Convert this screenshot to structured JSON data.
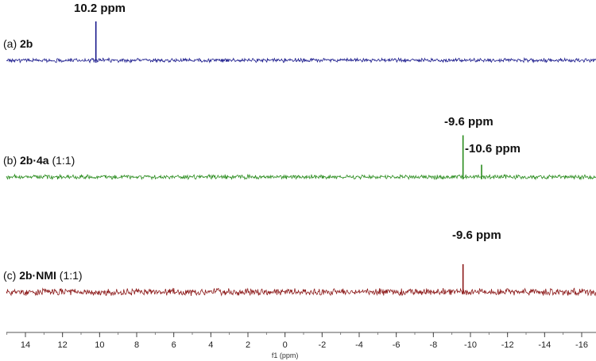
{
  "chart_data": {
    "type": "line",
    "xlabel": "f1 (ppm)",
    "xlim": [
      15,
      -16.5
    ],
    "x_reversed": true,
    "x_ticks": [
      14,
      12,
      10,
      8,
      6,
      4,
      2,
      0,
      -2,
      -4,
      -6,
      -8,
      -10,
      -12,
      -14,
      -16
    ],
    "x_tick_labels": [
      "14",
      "12",
      "10",
      "8",
      "6",
      "4",
      "2",
      "0",
      "-2",
      "-4",
      "-6",
      "-8",
      "-10",
      "-12",
      "-14",
      "-16"
    ],
    "series": [
      {
        "id": "a",
        "label_prefix": "(a) ",
        "label_bold": "2b",
        "label_suffix": "",
        "color": "#1a1a8c",
        "noise": 0.9,
        "peaks": [
          {
            "x": 10.2,
            "height": 7.0,
            "label": "10.2 ppm"
          }
        ]
      },
      {
        "id": "b",
        "label_prefix": "(b) ",
        "label_bold": "2b·4a",
        "label_suffix": " (1:1)",
        "color": "#2a8c1e",
        "noise": 1.0,
        "peaks": [
          {
            "x": -9.6,
            "height": 7.5,
            "label": "-9.6 ppm"
          },
          {
            "x": -10.6,
            "height": 2.2,
            "label": "-10.6 ppm"
          }
        ]
      },
      {
        "id": "c",
        "label_prefix": "(c) ",
        "label_bold": "2b·NMI",
        "label_suffix": " (1:1)",
        "color": "#8c1a1a",
        "noise": 1.6,
        "peaks": [
          {
            "x": -9.6,
            "height": 5.0,
            "label": "-9.6 ppm"
          }
        ]
      }
    ],
    "grid": false,
    "legend": "none"
  }
}
